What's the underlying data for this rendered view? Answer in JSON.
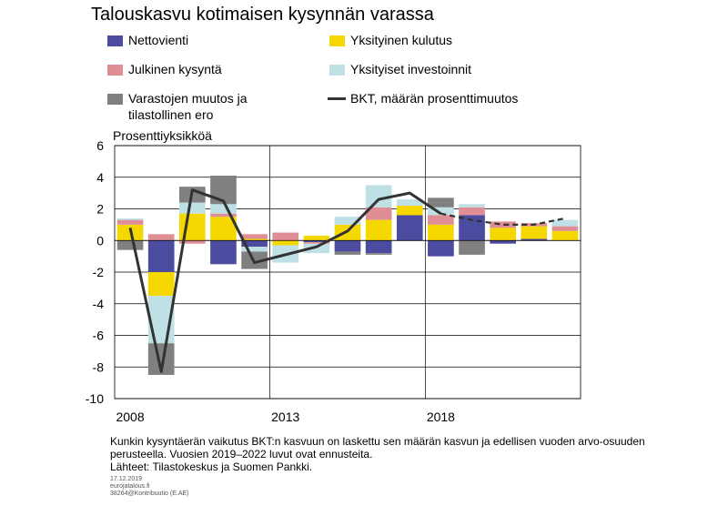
{
  "title": "Talouskasvu kotimaisen kysynnän varassa",
  "colors": {
    "net_exports": "#4b4ba0",
    "private_consumption": "#f5d800",
    "public_demand": "#e08e96",
    "private_investment": "#bfe0e4",
    "inventory": "#808080",
    "gdp_line": "#333333"
  },
  "chart_data": {
    "type": "bar",
    "subtype": "stacked bar with line",
    "title": "Talouskasvu kotimaisen kysynnän varassa",
    "ylabel": "Prosenttiyksikköä",
    "xlabel": "",
    "ylim": [
      -10,
      6
    ],
    "yticks": [
      6,
      4,
      2,
      0,
      -2,
      -4,
      -6,
      -8,
      -10
    ],
    "xtick_labels": [
      "2008",
      "2013",
      "2018"
    ],
    "categories": [
      "2008",
      "2009",
      "2010",
      "2011",
      "2012",
      "2013",
      "2014",
      "2015",
      "2016",
      "2017",
      "2018",
      "2019",
      "2020",
      "2021",
      "2022"
    ],
    "grid": true,
    "legend": "top",
    "series": [
      {
        "name": "Nettovienti",
        "color_key": "net_exports",
        "values": [
          0.0,
          -2.0,
          0.0,
          -1.5,
          -0.4,
          0.0,
          -0.1,
          -0.7,
          -0.8,
          1.6,
          -1.0,
          1.6,
          -0.2,
          0.1,
          0.0
        ]
      },
      {
        "name": "Yksityinen kulutus",
        "color_key": "private_consumption",
        "values": [
          1.0,
          -1.5,
          1.7,
          1.5,
          0.1,
          -0.3,
          0.3,
          1.0,
          1.3,
          0.6,
          1.0,
          0.0,
          0.8,
          0.8,
          0.6
        ]
      },
      {
        "name": "Julkinen kysyntä",
        "color_key": "public_demand",
        "values": [
          0.3,
          0.4,
          -0.2,
          0.2,
          0.3,
          0.5,
          -0.1,
          0.0,
          0.8,
          0.0,
          0.6,
          0.5,
          0.4,
          0.2,
          0.3
        ]
      },
      {
        "name": "Yksityiset investoinnit",
        "color_key": "private_investment",
        "values": [
          0.1,
          -3.0,
          0.7,
          0.6,
          -0.3,
          -1.1,
          -0.6,
          0.5,
          1.4,
          0.4,
          0.5,
          0.2,
          0.0,
          0.0,
          0.4
        ]
      },
      {
        "name": "Varastojen muutos ja tilastollinen ero",
        "color_key": "inventory",
        "values": [
          -0.6,
          -2.0,
          1.0,
          1.8,
          -1.1,
          0.0,
          0.0,
          -0.2,
          -0.1,
          0.0,
          0.6,
          -0.9,
          0.0,
          0.0,
          0.0
        ]
      }
    ],
    "line": {
      "name": "BKT, määrän prosenttimuutos",
      "color_key": "gdp_line",
      "values": [
        0.8,
        -8.3,
        3.2,
        2.5,
        -1.4,
        -0.9,
        -0.4,
        0.6,
        2.6,
        3.0,
        1.7,
        1.3,
        1.0,
        1.0,
        1.4
      ],
      "forecast_from_index": 10
    }
  },
  "legend": {
    "items": [
      {
        "label": "Nettovienti",
        "color_key": "net_exports"
      },
      {
        "label": "Yksityinen kulutus",
        "color_key": "private_consumption"
      },
      {
        "label": "Julkinen kysyntä",
        "color_key": "public_demand"
      },
      {
        "label": "Yksityiset investoinnit",
        "color_key": "private_investment"
      },
      {
        "label_line1": "Varastojen muutos ja",
        "label_line2": "tilastollinen ero",
        "color_key": "inventory"
      },
      {
        "label": "BKT, määrän prosenttimuutos",
        "color_key": "gdp_line"
      }
    ]
  },
  "notes": {
    "line1": "Kunkin kysyntäerän vaikutus BKT:n kasvuun on laskettu sen määrän kasvun ja edellisen vuoden arvo-osuuden",
    "line2": "perusteella. Vuosien 2019–2022 luvut ovat ennusteita.",
    "line3": "Lähteet: Tilastokeskus ja Suomen Pankki."
  },
  "meta": {
    "date": "17.12.2019",
    "site": "eurojatalous.fi",
    "id": "38264@Kontribuutio (E.AE)"
  }
}
